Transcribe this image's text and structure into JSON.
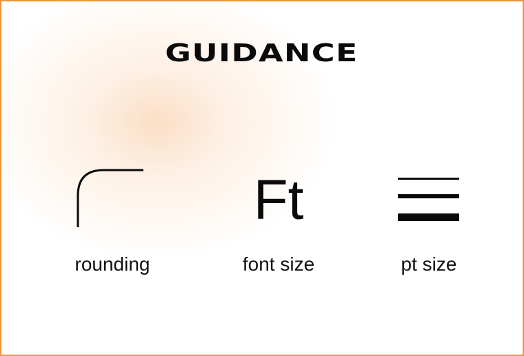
{
  "title": "GUIDANCE",
  "accent_color": "#f0923a",
  "items": [
    {
      "icon": "corner-rounding-icon",
      "label": "rounding"
    },
    {
      "icon": "font-size-icon",
      "glyph": "Ft",
      "label": "font size"
    },
    {
      "icon": "line-weight-icon",
      "label": "pt size"
    }
  ]
}
